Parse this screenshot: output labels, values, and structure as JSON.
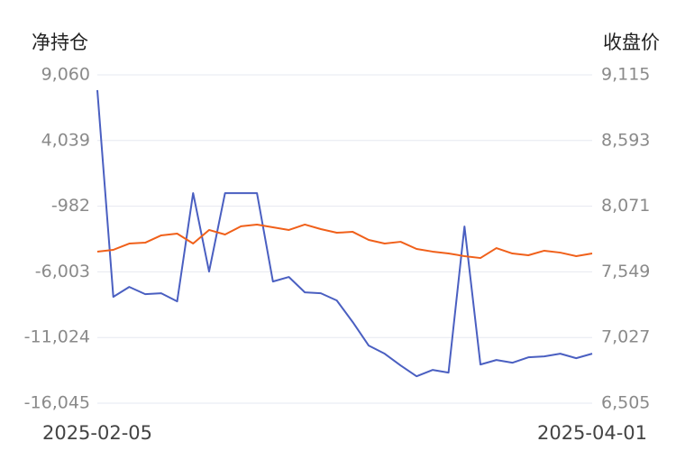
{
  "chart_data": {
    "type": "line",
    "y_label": "净持仓",
    "y2_label": "收盘价",
    "categories": [
      "2025-02-05",
      null,
      null,
      null,
      null,
      null,
      null,
      null,
      null,
      null,
      null,
      null,
      null,
      null,
      null,
      null,
      null,
      null,
      null,
      null,
      null,
      null,
      null,
      null,
      null,
      null,
      null,
      null,
      null,
      null,
      null,
      "2025-04-01"
    ],
    "series": [
      {
        "name": "净持仓",
        "color": "#4a5fc1",
        "axis": "y",
        "values": [
          7890,
          -7914,
          -7155,
          -7707,
          -7640,
          -8260,
          20,
          -5982,
          20,
          20,
          20,
          -6741,
          -6396,
          -7569,
          -7640,
          -8190,
          -9846,
          -11640,
          -12261,
          -13158,
          -13986,
          -13503,
          -13710,
          -2532,
          -13089,
          -12744,
          -12951,
          -12537,
          -12468,
          -12261,
          -12606,
          -12261
        ]
      },
      {
        "name": "收盘价",
        "color": "#f0601a",
        "axis": "y2",
        "values": [
          7710,
          7724,
          7774,
          7781,
          7839,
          7853,
          7774,
          7882,
          7846,
          7911,
          7925,
          7903,
          7882,
          7925,
          7889,
          7860,
          7867,
          7803,
          7774,
          7788,
          7731,
          7710,
          7695,
          7674,
          7659,
          7738,
          7695,
          7681,
          7717,
          7702,
          7674,
          7695
        ]
      }
    ],
    "ylim": [
      -16045,
      9060
    ],
    "yticks": [
      {
        "value": 9060,
        "label": "9,060"
      },
      {
        "value": 4039,
        "label": "4,039"
      },
      -982,
      {
        "value": -6003,
        "label": "-6,003"
      },
      {
        "value": -11024,
        "label": "-11,024"
      },
      {
        "value": -16045,
        "label": "-16,045"
      }
    ],
    "y2lim": [
      6505,
      9115
    ],
    "y2ticks": [
      {
        "value": 9115,
        "label": "9,115"
      },
      {
        "value": 8593,
        "label": "8,593"
      },
      {
        "value": 8071,
        "label": "8,071"
      },
      {
        "value": 7549,
        "label": "7,549"
      },
      {
        "value": 7027,
        "label": "7,027"
      },
      {
        "value": 6505,
        "label": "6,505"
      }
    ],
    "grid": true
  }
}
